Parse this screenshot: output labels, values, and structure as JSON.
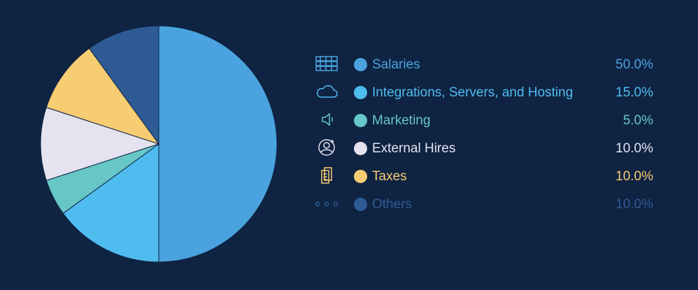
{
  "chart_data": {
    "type": "pie",
    "title": "",
    "start_angle_deg": 0,
    "direction": "clockwise",
    "slices": [
      {
        "label": "Salaries",
        "value": 50.0,
        "value_label": "50.0%",
        "color": "#4aa3de",
        "text_color": "#4aa3de",
        "icon": "server-rack-icon"
      },
      {
        "label": "Integrations, Servers, and Hosting",
        "value": 15.0,
        "value_label": "15.0%",
        "color": "#4fbcf0",
        "text_color": "#4fbcf0",
        "icon": "cloud-icon"
      },
      {
        "label": "Marketing",
        "value": 5.0,
        "value_label": "5.0%",
        "color": "#67c6c6",
        "text_color": "#67c6c6",
        "icon": "speaker-icon"
      },
      {
        "label": "External Hires",
        "value": 10.0,
        "value_label": "10.0%",
        "color": "#e4e3ef",
        "text_color": "#e4e3ef",
        "icon": "user-add-icon"
      },
      {
        "label": "Taxes",
        "value": 10.0,
        "value_label": "10.0%",
        "color": "#f6cd72",
        "text_color": "#f6cd72",
        "icon": "documents-icon"
      },
      {
        "label": "Others",
        "value": 10.0,
        "value_label": "10.0%",
        "color": "#2e5b94",
        "text_color": "#2e5b94",
        "icon": "more-dots-icon"
      }
    ]
  },
  "colors": {
    "background": "#0f2342",
    "slice_border": "#0f2342"
  }
}
